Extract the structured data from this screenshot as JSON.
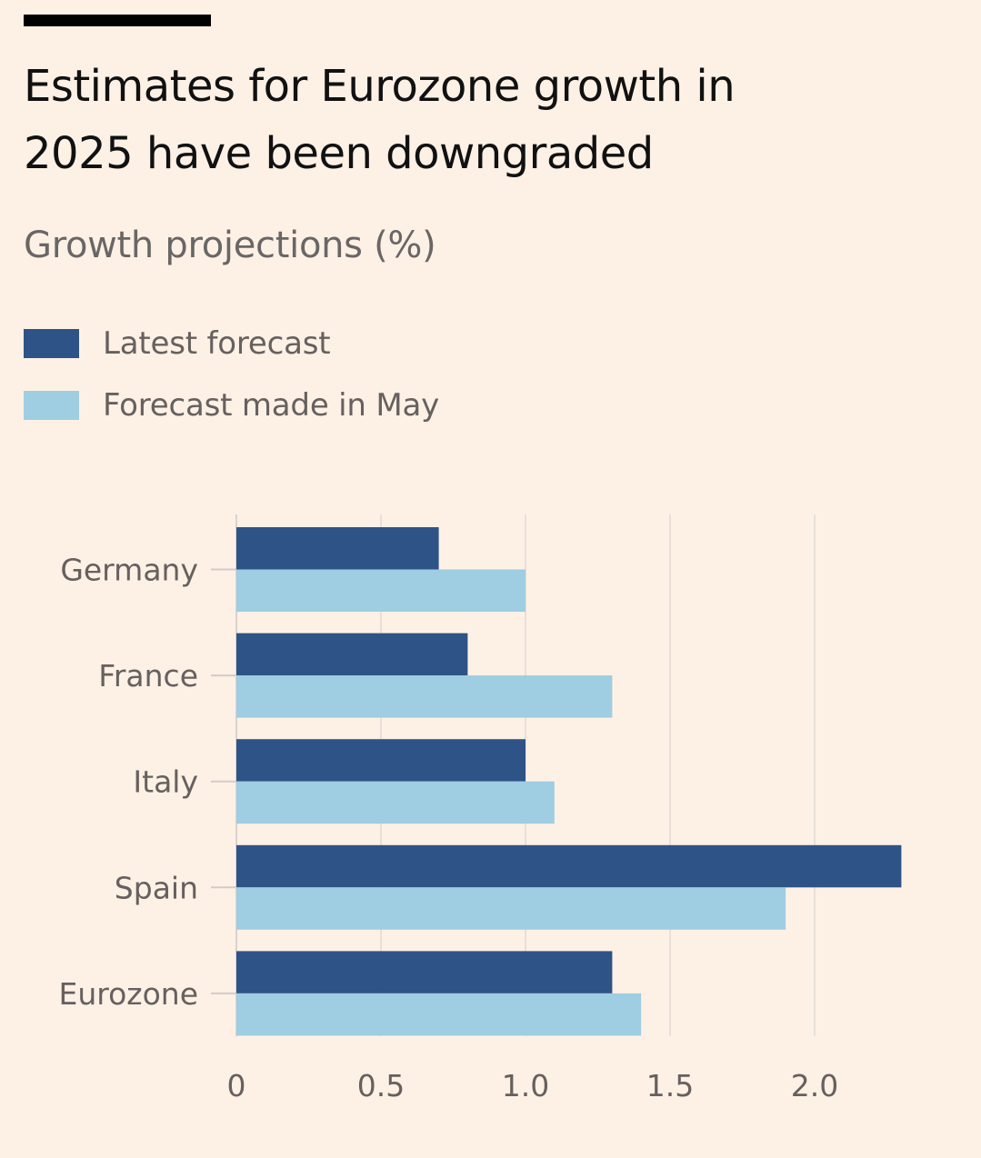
{
  "header": {
    "title_line1": "Estimates for Eurozone growth in",
    "title_line2": "2025 have been downgraded",
    "subtitle": "Growth projections (%)"
  },
  "legend": [
    {
      "label": "Latest forecast",
      "color": "#2e5386"
    },
    {
      "label": "Forecast made in May",
      "color": "#9fcde2"
    }
  ],
  "chart_data": {
    "type": "bar",
    "orientation": "horizontal",
    "title": "Estimates for Eurozone growth in 2025 have been downgraded",
    "subtitle": "Growth projections (%)",
    "categories": [
      "Germany",
      "France",
      "Italy",
      "Spain",
      "Eurozone"
    ],
    "series": [
      {
        "name": "Latest forecast",
        "color": "#2e5386",
        "values": [
          0.7,
          0.8,
          1.0,
          2.3,
          1.3
        ]
      },
      {
        "name": "Forecast made in May",
        "color": "#9fcde2",
        "values": [
          1.0,
          1.3,
          1.1,
          1.9,
          1.4
        ]
      }
    ],
    "xlabel": "",
    "ylabel": "",
    "xlim": [
      0,
      2.35
    ],
    "xticks": [
      0,
      0.5,
      1.0,
      1.5,
      2.0
    ],
    "xtick_labels": [
      "0",
      "0.5",
      "1.0",
      "1.5",
      "2.0"
    ],
    "grid": true,
    "legend_position": "top-left"
  }
}
